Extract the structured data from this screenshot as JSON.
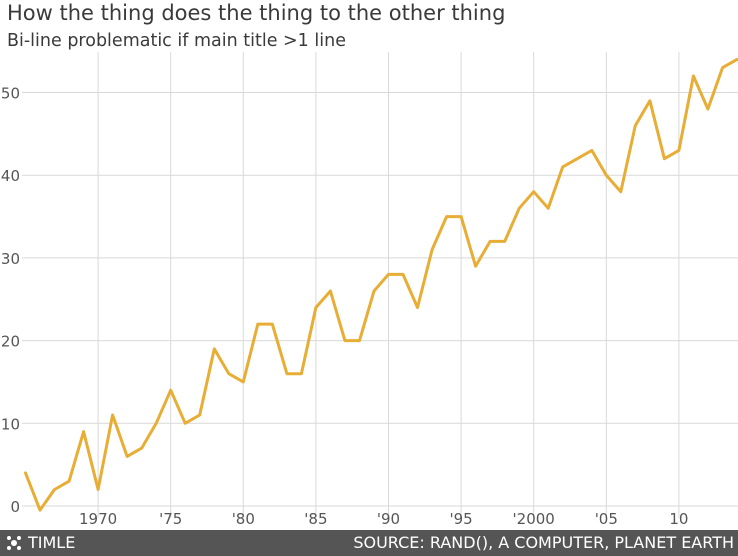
{
  "header": {
    "title": "How the thing does the thing to the other thing",
    "subtitle": "Bi-line problematic if main title >1 line"
  },
  "footer": {
    "left_label": "TIMLE",
    "source": "SOURCE: RAND(), A COMPUTER, PLANET EARTH"
  },
  "colors": {
    "line": "#E8AD35",
    "grid": "#d9d9d9",
    "axis_text": "#555555",
    "footer_bg": "#555555"
  },
  "chart_data": {
    "type": "line",
    "title": "How the thing does the thing to the other thing",
    "subtitle": "Bi-line problematic if main title >1 line",
    "xlabel": "",
    "ylabel": "",
    "xlim": [
      1964.8,
      2014
    ],
    "ylim": [
      -1,
      55
    ],
    "grid": true,
    "x_ticks": [
      1970,
      1975,
      1980,
      1985,
      1990,
      1995,
      2000,
      2005,
      2010
    ],
    "x_tick_labels": [
      "1970",
      "'75",
      "'80",
      "'85",
      "'90",
      "'95",
      "'2000",
      "'05",
      "10"
    ],
    "y_ticks": [
      0,
      10,
      20,
      30,
      40,
      50
    ],
    "y_tick_labels": [
      "0",
      "10",
      "20",
      "30",
      "40",
      "50"
    ],
    "x": [
      1965,
      1966,
      1967,
      1968,
      1969,
      1970,
      1971,
      1972,
      1973,
      1974,
      1975,
      1976,
      1977,
      1978,
      1979,
      1980,
      1981,
      1982,
      1983,
      1984,
      1985,
      1986,
      1987,
      1988,
      1989,
      1990,
      1991,
      1992,
      1993,
      1994,
      1995,
      1996,
      1997,
      1998,
      1999,
      2000,
      2001,
      2002,
      2003,
      2004,
      2005,
      2006,
      2007,
      2008,
      2009,
      2010,
      2011,
      2012,
      2013,
      2014
    ],
    "series": [
      {
        "values": [
          4,
          -0.5,
          2,
          3,
          9,
          2,
          11,
          6,
          7,
          10,
          14,
          10,
          11,
          19,
          16,
          15,
          22,
          22,
          16,
          16,
          24,
          26,
          20,
          20,
          26,
          28,
          28,
          24,
          31,
          35,
          35,
          29,
          32,
          32,
          36,
          38,
          36,
          41,
          42,
          43,
          40,
          38,
          46,
          49,
          42,
          43,
          52,
          48,
          53,
          54
        ]
      }
    ]
  }
}
